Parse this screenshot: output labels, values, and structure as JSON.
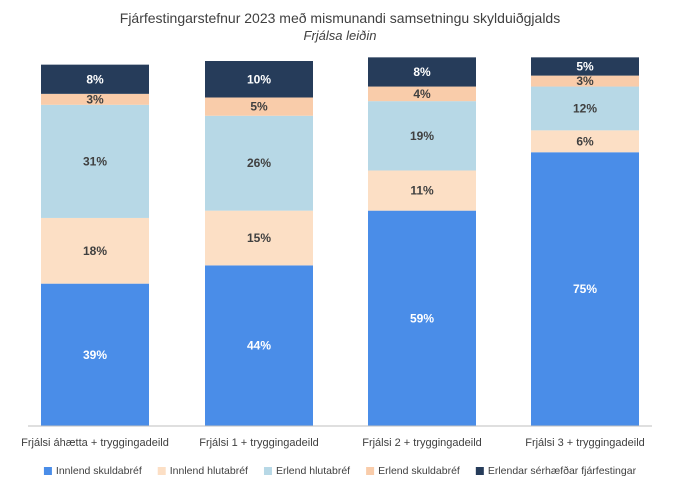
{
  "chart_data": {
    "type": "bar",
    "stacked": true,
    "title": "Fjárfestingarstefnur 2023 með mismunandi samsetningu skylduiðgjalds",
    "subtitle": "Frjálsa leiðin",
    "categories": [
      "Frjálsi áhætta + tryggingadeild",
      "Frjálsi 1 + tryggingadeild",
      "Frjálsi 2 + tryggingadeild",
      "Frjálsi 3 + tryggingadeild"
    ],
    "series": [
      {
        "name": "Innlend skuldabréf",
        "color": "#4a8de8",
        "label_color": "#ffffff",
        "values": [
          39,
          44,
          59,
          75
        ]
      },
      {
        "name": "Innlend hlutabréf",
        "color": "#fcdfc5",
        "label_color": "#404040",
        "values": [
          18,
          15,
          11,
          6
        ]
      },
      {
        "name": "Erlend hlutabréf",
        "color": "#b7d8e6",
        "label_color": "#404040",
        "values": [
          31,
          26,
          19,
          12
        ]
      },
      {
        "name": "Erlend skuldabréf",
        "color": "#f9ccaa",
        "label_color": "#404040",
        "values": [
          3,
          5,
          4,
          3
        ]
      },
      {
        "name": "Erlendar sérhæfðar fjárfestingar",
        "color": "#263c5a",
        "label_color": "#ffffff",
        "values": [
          8,
          10,
          8,
          5
        ]
      }
    ],
    "ylim": [
      0,
      100
    ],
    "value_suffix": "%",
    "grid": false,
    "legend_position": "bottom"
  }
}
